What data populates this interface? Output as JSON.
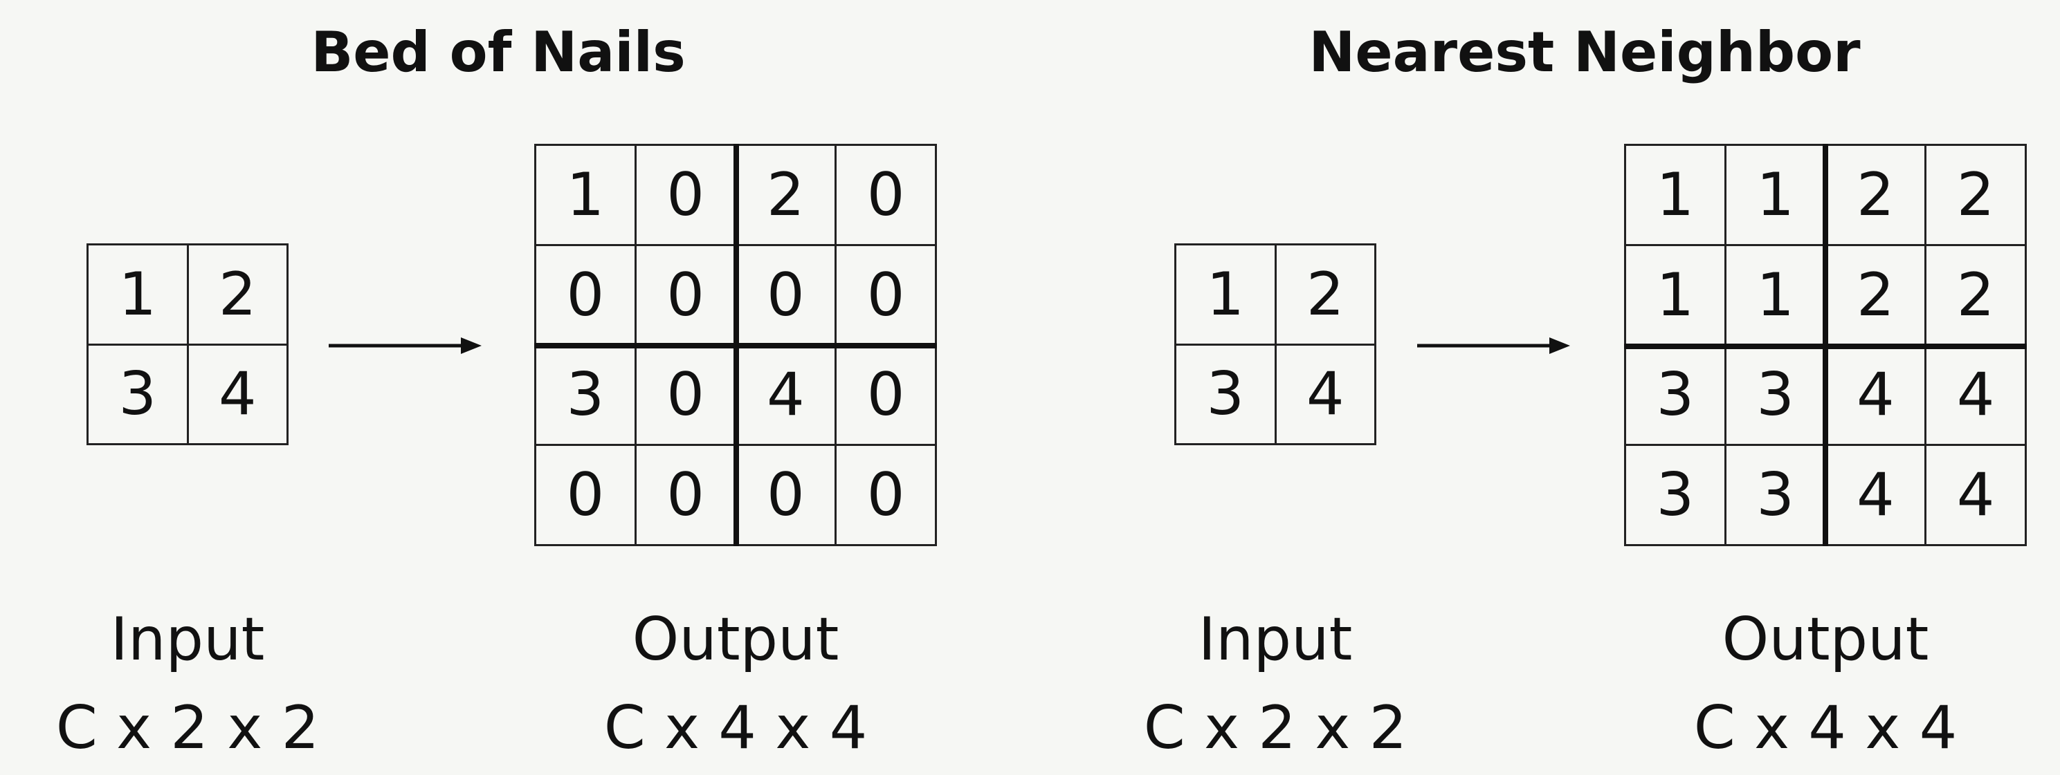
{
  "sections": [
    {
      "title": "Bed of Nails",
      "input": {
        "grid": [
          [
            "1",
            "2"
          ],
          [
            "3",
            "4"
          ]
        ],
        "label": "Input",
        "shape": "C x 2 x 2"
      },
      "output": {
        "grid": [
          [
            "1",
            "0",
            "2",
            "0"
          ],
          [
            "0",
            "0",
            "0",
            "0"
          ],
          [
            "3",
            "0",
            "4",
            "0"
          ],
          [
            "0",
            "0",
            "0",
            "0"
          ]
        ],
        "label": "Output",
        "shape": "C x 4 x 4"
      }
    },
    {
      "title": "Nearest Neighbor",
      "input": {
        "grid": [
          [
            "1",
            "2"
          ],
          [
            "3",
            "4"
          ]
        ],
        "label": "Input",
        "shape": "C x 2 x 2"
      },
      "output": {
        "grid": [
          [
            "1",
            "1",
            "2",
            "2"
          ],
          [
            "1",
            "1",
            "2",
            "2"
          ],
          [
            "3",
            "3",
            "4",
            "4"
          ],
          [
            "3",
            "3",
            "4",
            "4"
          ]
        ],
        "label": "Output",
        "shape": "C x 4 x 4"
      }
    }
  ]
}
